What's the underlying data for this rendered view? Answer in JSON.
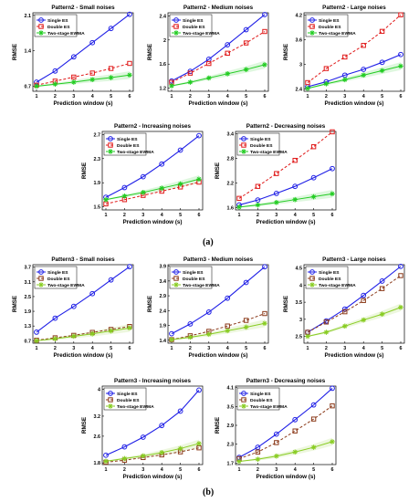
{
  "figure": {
    "label_a": "(a)",
    "label_b": "(b)"
  },
  "legend_labels": [
    "Single ES",
    "Double ES",
    "Two-stage EWMA"
  ],
  "colors": {
    "single": "#1f1fe6",
    "double": "#e01a1a",
    "ewma": "#22cc22",
    "double_p3": "#8b3a1a",
    "ewma_p3": "#88cc22"
  },
  "chart_data": [
    {
      "type": "line",
      "title": "Pattern2 - Small noises",
      "xlabel": "Prediction window (s)",
      "ylabel": "RMSE",
      "x": [
        1,
        2,
        3,
        4,
        5,
        6
      ],
      "ylim": [
        0.6,
        2.15
      ],
      "yticks": [
        "0.7",
        "1.4",
        "2.1"
      ],
      "xticks": [
        "1",
        "2",
        "3",
        "4",
        "5",
        "6"
      ],
      "series": [
        {
          "name": "Single ES",
          "values": [
            0.78,
            1.0,
            1.28,
            1.56,
            1.84,
            2.12
          ]
        },
        {
          "name": "Double ES",
          "values": [
            0.72,
            0.8,
            0.88,
            0.96,
            1.05,
            1.15
          ]
        },
        {
          "name": "Two-stage EWMA",
          "values": [
            0.7,
            0.74,
            0.78,
            0.83,
            0.87,
            0.92
          ]
        }
      ]
    },
    {
      "type": "line",
      "title": "Pattern2 - Medium noises",
      "xlabel": "Prediction window (s)",
      "ylabel": "RMSE",
      "x": [
        1,
        2,
        3,
        4,
        5,
        6
      ],
      "ylim": [
        1.15,
        2.45
      ],
      "yticks": [
        "1.2",
        "1.6",
        "2",
        "2.4"
      ],
      "xticks": [
        "1",
        "2",
        "3",
        "4",
        "5",
        "6"
      ],
      "series": [
        {
          "name": "Single ES",
          "values": [
            1.32,
            1.48,
            1.68,
            1.92,
            2.17,
            2.42
          ]
        },
        {
          "name": "Double ES",
          "values": [
            1.3,
            1.45,
            1.61,
            1.78,
            1.95,
            2.14
          ]
        },
        {
          "name": "Two-stage EWMA",
          "values": [
            1.24,
            1.3,
            1.37,
            1.44,
            1.51,
            1.59
          ]
        }
      ]
    },
    {
      "type": "line",
      "title": "Pattern2 - Large noises",
      "xlabel": "Prediction window (s)",
      "ylabel": "RMSE",
      "x": [
        1,
        2,
        3,
        4,
        5,
        6
      ],
      "ylim": [
        2.35,
        4.25
      ],
      "yticks": [
        "2.4",
        "3",
        "3.6",
        "4.2"
      ],
      "xticks": [
        "1",
        "2",
        "3",
        "4",
        "5",
        "6"
      ],
      "series": [
        {
          "name": "Single ES",
          "values": [
            2.46,
            2.58,
            2.74,
            2.88,
            3.05,
            3.24
          ]
        },
        {
          "name": "Double ES",
          "values": [
            2.56,
            2.9,
            3.18,
            3.46,
            3.8,
            4.2
          ]
        },
        {
          "name": "Two-stage EWMA",
          "values": [
            2.42,
            2.53,
            2.63,
            2.74,
            2.85,
            2.96
          ]
        }
      ]
    },
    {
      "type": "line",
      "title": "Pattern2 - Increasing noises",
      "xlabel": "Prediction window (s)",
      "ylabel": "RMSE",
      "x": [
        1,
        2,
        3,
        4,
        5,
        6
      ],
      "ylim": [
        1.45,
        2.75
      ],
      "yticks": [
        "1.5",
        "1.9",
        "2.3",
        "2.7"
      ],
      "xticks": [
        "1",
        "2",
        "3",
        "4",
        "5",
        "6"
      ],
      "series": [
        {
          "name": "Single ES",
          "values": [
            1.66,
            1.82,
            2.0,
            2.21,
            2.44,
            2.68
          ]
        },
        {
          "name": "Double ES",
          "values": [
            1.55,
            1.62,
            1.69,
            1.76,
            1.83,
            1.91
          ]
        },
        {
          "name": "Two-stage EWMA",
          "values": [
            1.62,
            1.68,
            1.74,
            1.81,
            1.88,
            1.96
          ]
        }
      ]
    },
    {
      "type": "line",
      "title": "Pattern2 - Decreasing noises",
      "xlabel": "Prediction window (s)",
      "ylabel": "RMSE",
      "x": [
        1,
        2,
        3,
        4,
        5,
        6
      ],
      "ylim": [
        1.55,
        3.45
      ],
      "yticks": [
        "1.6",
        "2.2",
        "2.8",
        "3.4"
      ],
      "xticks": [
        "1",
        "2",
        "3",
        "4",
        "5",
        "6"
      ],
      "series": [
        {
          "name": "Single ES",
          "values": [
            1.67,
            1.79,
            1.95,
            2.12,
            2.33,
            2.55
          ]
        },
        {
          "name": "Double ES",
          "values": [
            1.83,
            2.12,
            2.43,
            2.75,
            3.08,
            3.44
          ]
        },
        {
          "name": "Two-stage EWMA",
          "values": [
            1.62,
            1.67,
            1.73,
            1.8,
            1.87,
            1.94
          ]
        }
      ]
    },
    {
      "type": "line",
      "title": "Pattern3 - Small noises",
      "xlabel": "Prediction window (s)",
      "ylabel": "RMSE",
      "x": [
        1,
        2,
        3,
        4,
        5,
        6
      ],
      "ylim": [
        0.6,
        3.8
      ],
      "yticks": [
        "0.7",
        "1.3",
        "1.9",
        "2.5",
        "3.1",
        "3.7"
      ],
      "xticks": [
        "1",
        "2",
        "3",
        "4",
        "5",
        "6"
      ],
      "series": [
        {
          "name": "Single ES",
          "values": [
            1.05,
            1.62,
            2.1,
            2.62,
            3.18,
            3.72
          ]
        },
        {
          "name": "Double ES",
          "values": [
            0.72,
            0.82,
            0.92,
            1.04,
            1.16,
            1.28
          ]
        },
        {
          "name": "Two-stage EWMA",
          "values": [
            0.7,
            0.78,
            0.88,
            0.98,
            1.1,
            1.22
          ]
        }
      ]
    },
    {
      "type": "line",
      "title": "Pattern3 - Medium noises",
      "xlabel": "Prediction window (s)",
      "ylabel": "RMSE",
      "x": [
        1,
        2,
        3,
        4,
        5,
        6
      ],
      "ylim": [
        1.3,
        3.95
      ],
      "yticks": [
        "1.4",
        "1.9",
        "2.4",
        "2.9",
        "3.4",
        "3.9"
      ],
      "xticks": [
        "1",
        "2",
        "3",
        "4",
        "5",
        "6"
      ],
      "series": [
        {
          "name": "Single ES",
          "values": [
            1.62,
            1.95,
            2.35,
            2.82,
            3.35,
            3.88
          ]
        },
        {
          "name": "Double ES",
          "values": [
            1.42,
            1.55,
            1.7,
            1.88,
            2.07,
            2.3
          ]
        },
        {
          "name": "Two-stage EWMA",
          "values": [
            1.42,
            1.5,
            1.6,
            1.72,
            1.84,
            1.97
          ]
        }
      ]
    },
    {
      "type": "line",
      "title": "Pattern3 - Large noises",
      "xlabel": "Prediction window (s)",
      "ylabel": "RMSE",
      "x": [
        1,
        2,
        3,
        4,
        5,
        6
      ],
      "ylim": [
        2.3,
        4.6
      ],
      "yticks": [
        "2.5",
        "3",
        "3.5",
        "4",
        "4.5"
      ],
      "xticks": [
        "1",
        "2",
        "3",
        "4",
        "5",
        "6"
      ],
      "series": [
        {
          "name": "Single ES",
          "values": [
            2.62,
            2.95,
            3.3,
            3.7,
            4.12,
            4.55
          ]
        },
        {
          "name": "Double ES",
          "values": [
            2.62,
            2.92,
            3.22,
            3.55,
            3.9,
            4.28
          ]
        },
        {
          "name": "Two-stage EWMA",
          "values": [
            2.5,
            2.62,
            2.8,
            2.98,
            3.15,
            3.35
          ]
        }
      ]
    },
    {
      "type": "line",
      "title": "Pattern3 - Increasing noises",
      "xlabel": "Prediction window (s)",
      "ylabel": "RMSE",
      "x": [
        1,
        2,
        3,
        4,
        5,
        6
      ],
      "ylim": [
        1.75,
        4.1
      ],
      "yticks": [
        "1.8",
        "2.6",
        "3.2",
        "4"
      ],
      "xticks": [
        "1",
        "2",
        "3",
        "4",
        "5",
        "6"
      ],
      "series": [
        {
          "name": "Single ES",
          "values": [
            2.03,
            2.28,
            2.57,
            2.92,
            3.35,
            3.98
          ]
        },
        {
          "name": "Double ES",
          "values": [
            1.82,
            1.88,
            1.96,
            2.04,
            2.13,
            2.25
          ]
        },
        {
          "name": "Two-stage EWMA",
          "values": [
            1.85,
            1.93,
            2.01,
            2.11,
            2.23,
            2.38
          ]
        }
      ]
    },
    {
      "type": "line",
      "title": "Pattern3 - Decreasing noises",
      "xlabel": "Prediction window (s)",
      "ylabel": "RMSE",
      "x": [
        1,
        2,
        3,
        4,
        5,
        6
      ],
      "ylim": [
        1.65,
        4.15
      ],
      "yticks": [
        "1.7",
        "2.3",
        "2.9",
        "3.5",
        "4.1"
      ],
      "xticks": [
        "1",
        "2",
        "3",
        "4",
        "5",
        "6"
      ],
      "series": [
        {
          "name": "Single ES",
          "values": [
            1.88,
            2.2,
            2.62,
            3.08,
            3.55,
            4.08
          ]
        },
        {
          "name": "Double ES",
          "values": [
            1.84,
            2.05,
            2.35,
            2.72,
            3.1,
            3.52
          ]
        },
        {
          "name": "Two-stage EWMA",
          "values": [
            1.75,
            1.82,
            1.92,
            2.05,
            2.2,
            2.38
          ]
        }
      ]
    }
  ]
}
